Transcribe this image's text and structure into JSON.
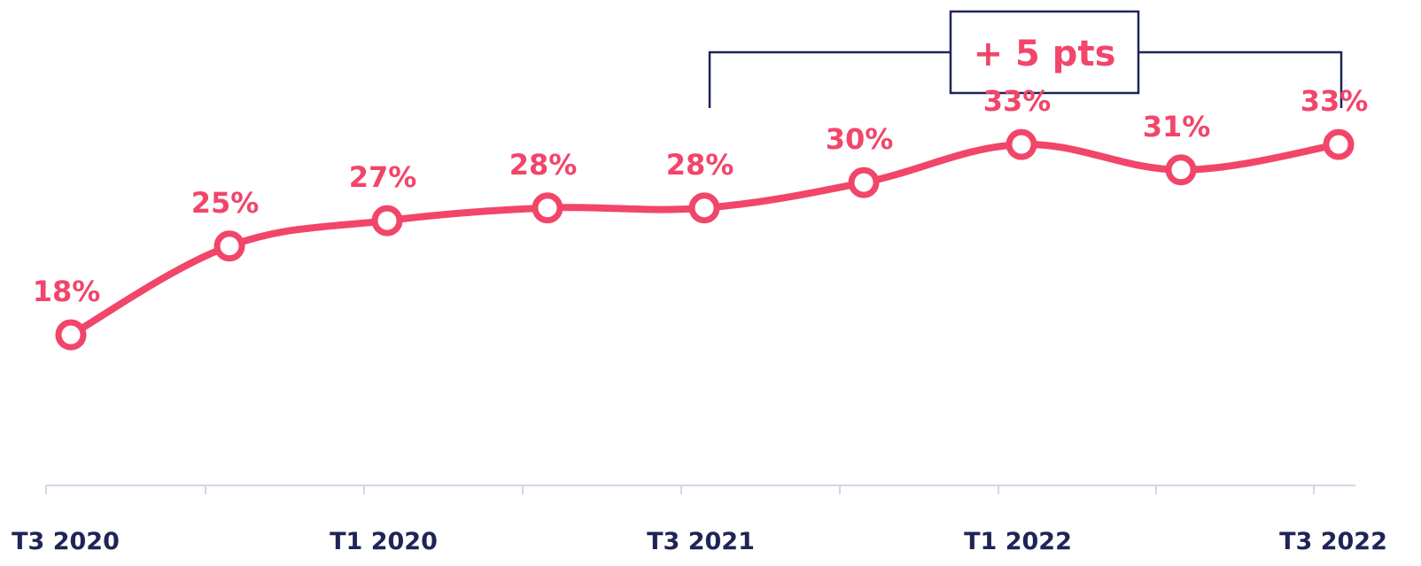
{
  "chart_data": {
    "type": "line",
    "categories": [
      "T3 2020",
      "",
      "T1 2020",
      "",
      "T3 2021",
      "",
      "T1 2022",
      "",
      "T3 2022"
    ],
    "series": [
      {
        "values": [
          18,
          25,
          27,
          28,
          28,
          30,
          33,
          31,
          33
        ],
        "labels": [
          "18%",
          "25%",
          "27%",
          "28%",
          "28%",
          "30%",
          "33%",
          "31%",
          "33%"
        ]
      }
    ],
    "unit": "%",
    "annotation": {
      "text": "+ 5 pts",
      "from_category_index": 4,
      "to_category_index": 8
    },
    "grid": false,
    "legend": "none",
    "colors": {
      "line": "#F2456A",
      "label": "#F2456A",
      "marker_fill": "#ffffff",
      "axis": "#D3D6E6",
      "tick_text": "#1E2556",
      "annotation_border": "#1E2556",
      "annotation_text": "#F2456A"
    }
  }
}
